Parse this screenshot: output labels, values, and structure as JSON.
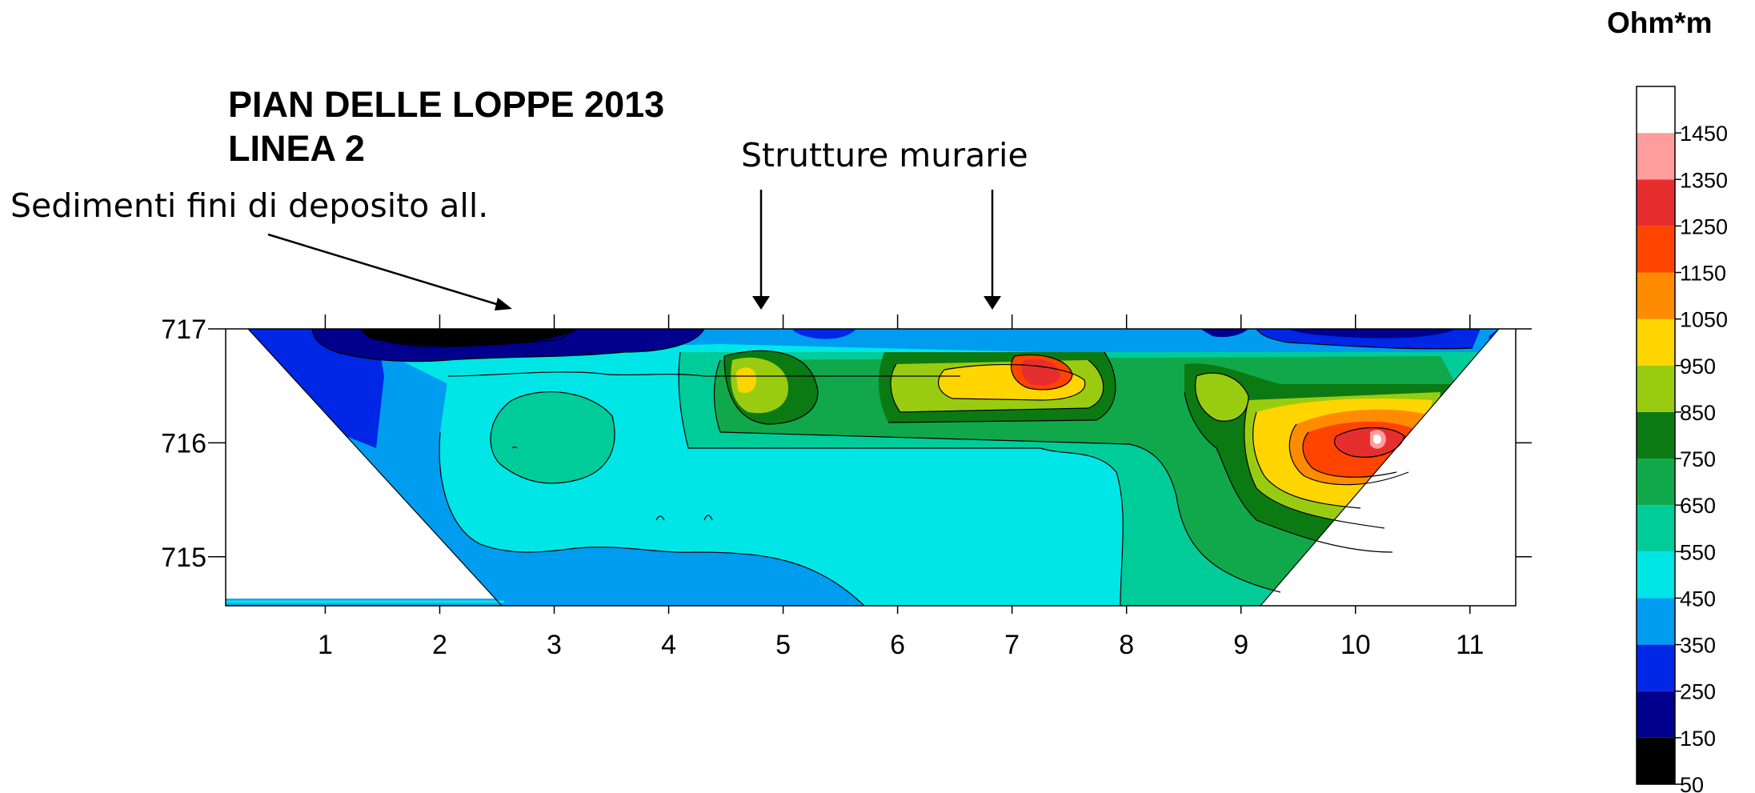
{
  "chart_data": {
    "type": "heatmap",
    "title": [
      "PIAN DELLE LOPPE 2013",
      "LINEA 2"
    ],
    "x_ticks": [
      1,
      2,
      3,
      4,
      5,
      6,
      7,
      8,
      9,
      10,
      11
    ],
    "y_ticks": [
      715,
      716,
      717
    ],
    "xlim": [
      0.13,
      11.4
    ],
    "ylim": [
      714.57,
      717.0
    ],
    "grid": false,
    "colorbar": {
      "unit": "Ohm*m",
      "levels": [
        50,
        150,
        250,
        350,
        450,
        550,
        650,
        750,
        850,
        950,
        1050,
        1150,
        1250,
        1350,
        1450
      ],
      "colors": [
        "#000000",
        "#00008c",
        "#0026e6",
        "#009cf0",
        "#00e6e6",
        "#00cc99",
        "#11a84b",
        "#0b7a12",
        "#99cc11",
        "#ffd500",
        "#ff8c00",
        "#ff4400",
        "#e62e2e",
        "#ff9c9c",
        "#ffffff"
      ]
    },
    "annotations": [
      {
        "text": "Sedimenti fini di deposito all.",
        "points_to_x": 2.55
      },
      {
        "text": "Strutture murarie",
        "points_to_x": [
          4.8,
          6.8
        ]
      }
    ]
  }
}
